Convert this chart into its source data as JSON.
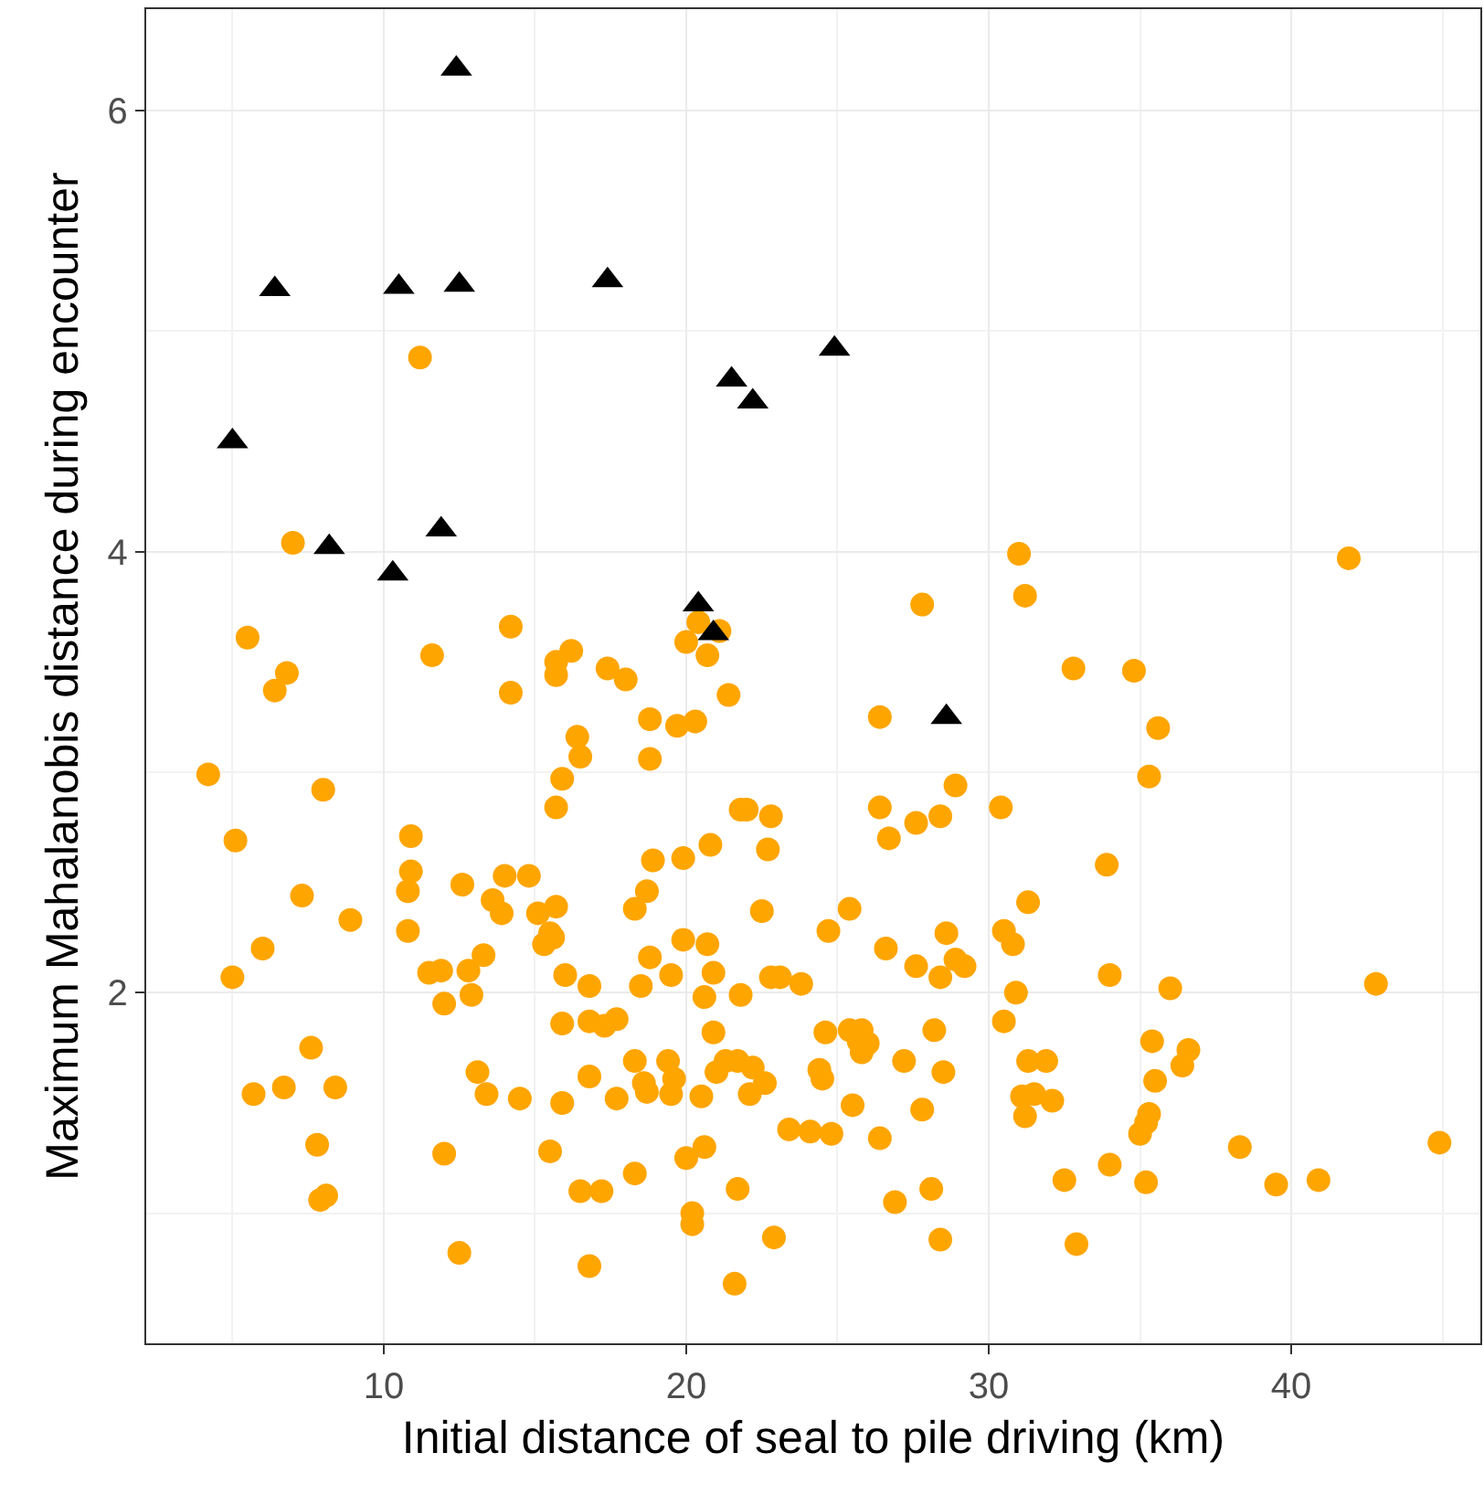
{
  "chart_data": {
    "type": "scatter",
    "xlabel": "Initial distance of seal to pile driving (km)",
    "ylabel": "Maximum Mahalanobis distance during encounter",
    "xlim": [
      2.15,
      46.25
    ],
    "ylim": [
      0.41,
      6.46
    ],
    "xticks": [
      10,
      20,
      30,
      40
    ],
    "yticks": [
      2,
      4,
      6
    ],
    "grid": true,
    "series": [
      {
        "color": "#ffa500",
        "marker": "circle",
        "x": [
          11.2,
          7.0,
          5.5,
          6.8,
          6.4,
          4.2,
          8.0,
          5.1,
          7.3,
          8.9,
          11.6,
          14.2,
          14.2,
          16.2,
          15.7,
          15.7,
          16.4,
          16.5,
          15.9,
          15.7,
          10.9,
          10.9,
          10.8,
          12.6,
          14.0,
          14.8,
          13.6,
          13.9,
          15.1,
          15.7,
          15.5,
          10.8,
          6.0,
          5.0,
          11.5,
          11.9,
          12.8,
          13.3,
          12.0,
          12.9,
          15.3,
          15.6,
          16.0,
          16.8,
          15.9,
          16.8,
          17.3,
          17.7,
          16.8,
          15.9,
          15.5,
          16.5,
          17.2,
          16.8,
          7.6,
          5.7,
          6.7,
          8.4,
          7.8,
          7.9,
          8.1,
          13.1,
          13.4,
          14.5,
          12.0,
          12.5,
          20.4,
          21.1,
          20.0,
          20.7,
          17.4,
          18.0,
          18.8,
          19.7,
          20.3,
          18.8,
          21.4,
          26.4,
          27.8,
          31.0,
          31.2,
          28.9,
          26.4,
          27.6,
          28.4,
          26.7,
          30.4,
          31.3,
          21.8,
          22.0,
          22.8,
          22.7,
          20.8,
          19.9,
          18.9,
          18.7,
          18.3,
          22.5,
          25.4,
          24.7,
          28.6,
          30.5,
          19.9,
          20.7,
          18.8,
          19.5,
          18.5,
          20.9,
          20.6,
          21.8,
          22.8,
          23.1,
          23.8,
          26.6,
          27.6,
          28.4,
          28.9,
          29.2,
          30.8,
          30.9,
          30.5,
          20.9,
          24.6,
          25.4,
          25.8,
          25.7,
          26.0,
          25.8,
          27.2,
          28.2,
          28.5,
          27.8,
          25.5,
          26.4,
          24.4,
          24.5,
          18.3,
          19.4,
          17.7,
          18.6,
          18.7,
          19.6,
          19.5,
          20.5,
          21.0,
          21.3,
          21.7,
          22.2,
          22.6,
          22.1,
          23.4,
          24.1,
          24.8,
          20.0,
          20.6,
          18.3,
          21.7,
          20.2,
          20.2,
          22.9,
          21.6,
          26.9,
          28.1,
          28.4,
          31.3,
          31.1,
          31.5,
          31.2,
          32.8,
          34.8,
          35.6,
          35.3,
          33.9,
          34.0,
          36.0,
          42.8,
          41.9,
          35.4,
          36.6,
          36.4,
          35.5,
          31.9,
          32.1,
          35.3,
          35.2,
          35.0,
          38.3,
          44.9,
          32.5,
          34.0,
          35.2,
          39.5,
          40.9,
          32.9
        ],
        "values": [
          4.88,
          4.04,
          3.61,
          3.45,
          3.37,
          2.99,
          2.92,
          2.69,
          2.44,
          2.33,
          3.53,
          3.66,
          3.36,
          3.55,
          3.5,
          3.44,
          3.16,
          3.07,
          2.97,
          2.84,
          2.71,
          2.55,
          2.46,
          2.49,
          2.53,
          2.53,
          2.42,
          2.36,
          2.36,
          2.39,
          2.27,
          2.28,
          2.2,
          2.07,
          2.09,
          2.1,
          2.1,
          2.17,
          1.95,
          1.99,
          2.22,
          2.25,
          2.08,
          2.03,
          1.86,
          1.87,
          1.85,
          1.88,
          1.62,
          1.5,
          1.28,
          1.1,
          1.1,
          0.76,
          1.75,
          1.54,
          1.57,
          1.57,
          1.31,
          1.06,
          1.08,
          1.64,
          1.54,
          1.52,
          1.27,
          0.82,
          3.68,
          3.64,
          3.59,
          3.53,
          3.47,
          3.42,
          3.24,
          3.21,
          3.23,
          3.06,
          3.35,
          3.25,
          3.76,
          3.99,
          3.8,
          2.94,
          2.84,
          2.77,
          2.8,
          2.7,
          2.84,
          2.41,
          2.83,
          2.83,
          2.8,
          2.65,
          2.67,
          2.61,
          2.6,
          2.46,
          2.38,
          2.37,
          2.38,
          2.28,
          2.27,
          2.28,
          2.24,
          2.22,
          2.16,
          2.08,
          2.03,
          2.09,
          1.98,
          1.99,
          2.07,
          2.07,
          2.04,
          2.2,
          2.12,
          2.07,
          2.15,
          2.12,
          2.22,
          2.0,
          1.87,
          1.82,
          1.82,
          1.83,
          1.83,
          1.78,
          1.77,
          1.73,
          1.69,
          1.83,
          1.64,
          1.47,
          1.49,
          1.34,
          1.65,
          1.61,
          1.69,
          1.69,
          1.52,
          1.59,
          1.55,
          1.61,
          1.54,
          1.53,
          1.64,
          1.69,
          1.69,
          1.66,
          1.59,
          1.54,
          1.38,
          1.37,
          1.36,
          1.25,
          1.3,
          1.18,
          1.11,
          1.0,
          0.95,
          0.89,
          0.68,
          1.05,
          1.11,
          0.88,
          1.69,
          1.53,
          1.54,
          1.44,
          3.47,
          3.46,
          3.2,
          2.98,
          2.58,
          2.08,
          2.02,
          2.04,
          3.97,
          1.78,
          1.74,
          1.67,
          1.6,
          1.69,
          1.51,
          1.45,
          1.41,
          1.36,
          1.3,
          1.32,
          1.15,
          1.22,
          1.14,
          1.13,
          1.15,
          0.86
        ]
      },
      {
        "color": "#000000",
        "marker": "triangle",
        "x": [
          12.4,
          6.4,
          10.5,
          12.5,
          17.4,
          24.9,
          5.0,
          8.2,
          11.9,
          10.3,
          21.5,
          22.2,
          20.4,
          20.9,
          28.6
        ],
        "values": [
          6.19,
          5.19,
          5.2,
          5.21,
          5.23,
          4.92,
          4.5,
          4.02,
          4.1,
          3.9,
          4.78,
          4.68,
          3.76,
          3.63,
          3.25
        ]
      }
    ]
  }
}
